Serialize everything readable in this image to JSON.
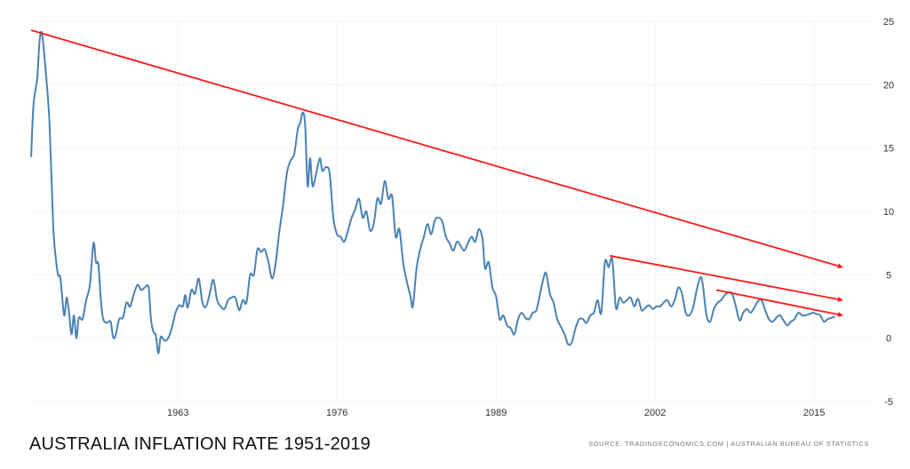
{
  "chart_data": {
    "type": "line",
    "title": "AUSTRALIA INFLATION RATE 1951-2019",
    "source": "SOURCE: TRADINGECONOMICS.COM | AUSTRALIAN BUREAU OF STATISTICS",
    "xlabel": "",
    "ylabel": "",
    "xlim": [
      1951,
      2020
    ],
    "ylim": [
      -5,
      25
    ],
    "x_ticks": [
      1963,
      1976,
      1989,
      2002,
      2015
    ],
    "y_ticks": [
      25,
      20,
      15,
      10,
      5,
      0,
      -5
    ],
    "grid": true,
    "y_axis_side": "right",
    "colors": {
      "series": "#4a82b4",
      "trend": "#ff1a1a",
      "grid": "#e3e3e3"
    },
    "series": [
      {
        "values": [
          [
            1951.0,
            14.3
          ],
          [
            1951.2,
            18.5
          ],
          [
            1951.5,
            20.5
          ],
          [
            1951.7,
            23.5
          ],
          [
            1951.9,
            24.0
          ],
          [
            1952.2,
            21.0
          ],
          [
            1952.5,
            17.0
          ],
          [
            1952.8,
            9.0
          ],
          [
            1953.0,
            6.5
          ],
          [
            1953.2,
            5.0
          ],
          [
            1953.4,
            4.7
          ],
          [
            1953.7,
            1.8
          ],
          [
            1953.9,
            3.2
          ],
          [
            1954.1,
            2.0
          ],
          [
            1954.3,
            0.3
          ],
          [
            1954.5,
            1.8
          ],
          [
            1954.7,
            0.0
          ],
          [
            1954.9,
            1.6
          ],
          [
            1955.2,
            1.5
          ],
          [
            1955.5,
            3.0
          ],
          [
            1955.8,
            4.2
          ],
          [
            1956.1,
            7.5
          ],
          [
            1956.3,
            6.0
          ],
          [
            1956.5,
            5.8
          ],
          [
            1956.7,
            3.0
          ],
          [
            1956.9,
            1.5
          ],
          [
            1957.2,
            1.2
          ],
          [
            1957.5,
            1.3
          ],
          [
            1957.7,
            0.1
          ],
          [
            1957.9,
            0.2
          ],
          [
            1958.2,
            1.5
          ],
          [
            1958.5,
            1.6
          ],
          [
            1958.8,
            2.8
          ],
          [
            1959.1,
            2.5
          ],
          [
            1959.4,
            3.5
          ],
          [
            1959.7,
            4.2
          ],
          [
            1960.0,
            3.8
          ],
          [
            1960.3,
            4.0
          ],
          [
            1960.6,
            4.0
          ],
          [
            1960.8,
            1.5
          ],
          [
            1961.0,
            0.5
          ],
          [
            1961.2,
            0.2
          ],
          [
            1961.4,
            -1.2
          ],
          [
            1961.6,
            0.1
          ],
          [
            1961.9,
            -0.2
          ],
          [
            1962.2,
            0.0
          ],
          [
            1962.5,
            0.8
          ],
          [
            1962.8,
            2.0
          ],
          [
            1963.1,
            2.6
          ],
          [
            1963.4,
            2.5
          ],
          [
            1963.6,
            3.4
          ],
          [
            1963.8,
            2.4
          ],
          [
            1964.1,
            3.8
          ],
          [
            1964.4,
            3.5
          ],
          [
            1964.7,
            4.7
          ],
          [
            1965.0,
            2.8
          ],
          [
            1965.3,
            2.5
          ],
          [
            1965.6,
            3.5
          ],
          [
            1965.9,
            4.6
          ],
          [
            1966.2,
            3.0
          ],
          [
            1966.5,
            2.5
          ],
          [
            1966.8,
            2.3
          ],
          [
            1967.1,
            3.0
          ],
          [
            1967.4,
            3.2
          ],
          [
            1967.7,
            3.2
          ],
          [
            1968.0,
            2.2
          ],
          [
            1968.3,
            3.0
          ],
          [
            1968.6,
            2.8
          ],
          [
            1968.9,
            5.0
          ],
          [
            1969.2,
            5.0
          ],
          [
            1969.5,
            7.0
          ],
          [
            1969.8,
            6.8
          ],
          [
            1970.1,
            7.0
          ],
          [
            1970.4,
            6.0
          ],
          [
            1970.7,
            4.7
          ],
          [
            1971.0,
            6.0
          ],
          [
            1971.3,
            8.5
          ],
          [
            1971.6,
            10.5
          ],
          [
            1971.9,
            13.0
          ],
          [
            1972.2,
            14.0
          ],
          [
            1972.5,
            14.5
          ],
          [
            1972.8,
            16.5
          ],
          [
            1973.0,
            17.0
          ],
          [
            1973.2,
            17.8
          ],
          [
            1973.4,
            16.8
          ],
          [
            1973.6,
            12.0
          ],
          [
            1973.8,
            14.2
          ],
          [
            1974.0,
            12.0
          ],
          [
            1974.3,
            13.0
          ],
          [
            1974.6,
            14.2
          ],
          [
            1974.8,
            13.2
          ],
          [
            1975.1,
            13.5
          ],
          [
            1975.4,
            13.0
          ],
          [
            1975.7,
            9.5
          ],
          [
            1976.0,
            8.2
          ],
          [
            1976.3,
            8.0
          ],
          [
            1976.6,
            7.6
          ],
          [
            1976.9,
            8.5
          ],
          [
            1977.2,
            9.5
          ],
          [
            1977.5,
            10.2
          ],
          [
            1977.8,
            11.0
          ],
          [
            1978.1,
            9.5
          ],
          [
            1978.4,
            10.0
          ],
          [
            1978.7,
            8.5
          ],
          [
            1979.0,
            9.0
          ],
          [
            1979.3,
            11.0
          ],
          [
            1979.6,
            10.6
          ],
          [
            1979.9,
            12.4
          ],
          [
            1980.2,
            11.0
          ],
          [
            1980.5,
            11.2
          ],
          [
            1980.8,
            8.0
          ],
          [
            1981.1,
            8.6
          ],
          [
            1981.4,
            6.0
          ],
          [
            1981.7,
            4.5
          ],
          [
            1982.0,
            3.3
          ],
          [
            1982.2,
            2.5
          ],
          [
            1982.5,
            5.5
          ],
          [
            1982.8,
            7.0
          ],
          [
            1983.1,
            8.0
          ],
          [
            1983.4,
            9.0
          ],
          [
            1983.7,
            8.2
          ],
          [
            1984.0,
            9.3
          ],
          [
            1984.3,
            9.5
          ],
          [
            1984.6,
            9.2
          ],
          [
            1984.9,
            8.0
          ],
          [
            1985.2,
            7.5
          ],
          [
            1985.5,
            6.9
          ],
          [
            1985.8,
            7.6
          ],
          [
            1986.1,
            7.3
          ],
          [
            1986.4,
            6.9
          ],
          [
            1986.7,
            7.5
          ],
          [
            1987.0,
            8.0
          ],
          [
            1987.3,
            7.6
          ],
          [
            1987.6,
            8.6
          ],
          [
            1987.9,
            7.8
          ],
          [
            1988.1,
            5.5
          ],
          [
            1988.4,
            6.0
          ],
          [
            1988.7,
            4.0
          ],
          [
            1989.0,
            3.3
          ],
          [
            1989.3,
            1.5
          ],
          [
            1989.6,
            1.8
          ],
          [
            1989.9,
            1.0
          ],
          [
            1990.2,
            0.8
          ],
          [
            1990.5,
            0.3
          ],
          [
            1990.8,
            1.5
          ],
          [
            1991.1,
            2.0
          ],
          [
            1991.4,
            1.6
          ],
          [
            1991.7,
            1.5
          ],
          [
            1992.0,
            2.0
          ],
          [
            1992.3,
            2.2
          ],
          [
            1992.6,
            3.5
          ],
          [
            1992.9,
            4.8
          ],
          [
            1993.1,
            5.1
          ],
          [
            1993.4,
            3.5
          ],
          [
            1993.7,
            2.8
          ],
          [
            1994.0,
            1.5
          ],
          [
            1994.3,
            0.9
          ],
          [
            1994.6,
            0.3
          ],
          [
            1994.9,
            -0.5
          ],
          [
            1995.2,
            -0.3
          ],
          [
            1995.5,
            0.8
          ],
          [
            1995.8,
            1.5
          ],
          [
            1996.1,
            1.5
          ],
          [
            1996.4,
            1.2
          ],
          [
            1996.7,
            1.8
          ],
          [
            1997.0,
            2.0
          ],
          [
            1997.3,
            3.0
          ],
          [
            1997.6,
            2.0
          ],
          [
            1997.9,
            6.0
          ],
          [
            1998.2,
            5.6
          ],
          [
            1998.5,
            6.2
          ],
          [
            1998.8,
            2.4
          ],
          [
            1999.1,
            3.2
          ],
          [
            1999.4,
            2.8
          ],
          [
            1999.7,
            3.0
          ],
          [
            2000.0,
            3.2
          ],
          [
            2000.3,
            2.5
          ],
          [
            2000.6,
            3.1
          ],
          [
            2000.9,
            2.2
          ],
          [
            2001.2,
            2.4
          ],
          [
            2001.5,
            2.6
          ],
          [
            2001.8,
            2.3
          ],
          [
            2002.1,
            2.5
          ],
          [
            2002.4,
            2.5
          ],
          [
            2002.7,
            2.8
          ],
          [
            2003.0,
            3.0
          ],
          [
            2003.3,
            2.5
          ],
          [
            2003.6,
            3.0
          ],
          [
            2003.9,
            4.0
          ],
          [
            2004.2,
            3.5
          ],
          [
            2004.5,
            2.0
          ],
          [
            2004.8,
            1.8
          ],
          [
            2005.1,
            2.4
          ],
          [
            2005.4,
            3.8
          ],
          [
            2005.7,
            4.8
          ],
          [
            2005.9,
            4.2
          ],
          [
            2006.2,
            1.8
          ],
          [
            2006.5,
            1.3
          ],
          [
            2006.8,
            2.3
          ],
          [
            2007.1,
            2.8
          ],
          [
            2007.4,
            3.0
          ],
          [
            2007.7,
            3.4
          ],
          [
            2008.0,
            3.6
          ],
          [
            2008.3,
            3.5
          ],
          [
            2008.6,
            2.5
          ],
          [
            2008.9,
            1.4
          ],
          [
            2009.2,
            2.0
          ],
          [
            2009.5,
            2.3
          ],
          [
            2009.8,
            2.0
          ],
          [
            2010.1,
            2.4
          ],
          [
            2010.4,
            2.9
          ],
          [
            2010.7,
            3.0
          ],
          [
            2011.0,
            2.2
          ],
          [
            2011.3,
            1.5
          ],
          [
            2011.6,
            1.3
          ],
          [
            2011.9,
            1.6
          ],
          [
            2012.2,
            1.8
          ],
          [
            2012.5,
            1.4
          ],
          [
            2012.8,
            1.0
          ],
          [
            2013.1,
            1.3
          ],
          [
            2013.4,
            1.5
          ],
          [
            2013.7,
            2.0
          ],
          [
            2014.0,
            1.8
          ],
          [
            2014.3,
            1.8
          ],
          [
            2014.6,
            1.9
          ],
          [
            2014.9,
            2.0
          ],
          [
            2015.2,
            1.9
          ],
          [
            2015.5,
            1.8
          ],
          [
            2015.8,
            1.3
          ],
          [
            2016.1,
            1.5
          ],
          [
            2016.4,
            1.6
          ],
          [
            2016.7,
            1.7
          ]
        ]
      }
    ],
    "trend_lines": [
      {
        "x": [
          1951.0,
          2017.3
        ],
        "y": [
          24.3,
          5.6
        ]
      },
      {
        "x": [
          1998.3,
          2017.3
        ],
        "y": [
          6.5,
          3.0
        ]
      },
      {
        "x": [
          2007.0,
          2017.3
        ],
        "y": [
          3.8,
          1.8
        ]
      }
    ]
  }
}
